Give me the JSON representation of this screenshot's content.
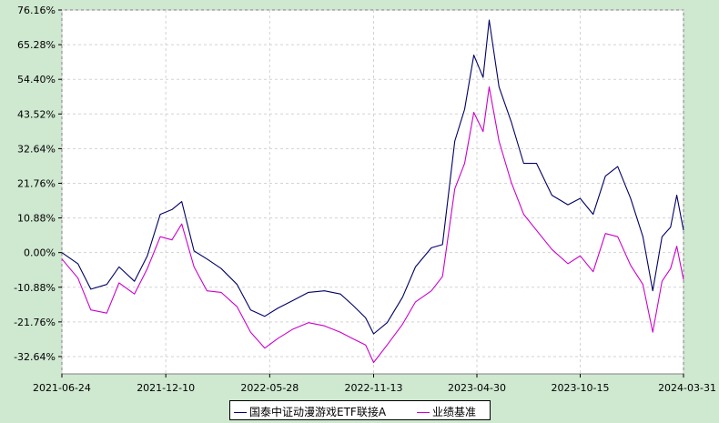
{
  "colors": {
    "series1": "#000066",
    "series2": "#cc00cc",
    "grid": "#d3d3d3",
    "plot_bg": "#ffffff",
    "page_bg": "#cfe8d0"
  },
  "chart_data": {
    "type": "line",
    "ylim": [
      -38.08,
      76.16
    ],
    "yticks": [
      "76.16%",
      "65.28%",
      "54.40%",
      "43.52%",
      "32.64%",
      "21.76%",
      "10.88%",
      "0.00%",
      "-10.88%",
      "-21.76%",
      "-32.64%"
    ],
    "ytick_values": [
      76.16,
      65.28,
      54.4,
      43.52,
      32.64,
      21.76,
      10.88,
      0.0,
      -10.88,
      -21.76,
      -32.64
    ],
    "xticks": [
      "2021-06-24",
      "2021-12-10",
      "2022-05-28",
      "2022-11-13",
      "2023-04-30",
      "2023-10-15",
      "2024-03-31"
    ],
    "x_start": "2021-06-24",
    "x_end": "2024-03-31",
    "grid": true,
    "legend_position": "bottom",
    "series": [
      {
        "name": "国泰中证动漫游戏ETF联接A",
        "color": "#000066",
        "x": [
          "2021-06-24",
          "2021-07-20",
          "2021-08-10",
          "2021-09-05",
          "2021-09-25",
          "2021-10-20",
          "2021-11-10",
          "2021-12-01",
          "2021-12-20",
          "2022-01-05",
          "2022-01-25",
          "2022-02-15",
          "2022-03-10",
          "2022-04-05",
          "2022-04-27",
          "2022-05-20",
          "2022-06-10",
          "2022-07-05",
          "2022-07-30",
          "2022-08-25",
          "2022-09-20",
          "2022-10-10",
          "2022-10-31",
          "2022-11-13",
          "2022-12-05",
          "2022-12-30",
          "2023-01-20",
          "2023-02-15",
          "2023-03-05",
          "2023-03-25",
          "2023-04-10",
          "2023-04-25",
          "2023-05-10",
          "2023-05-20",
          "2023-06-05",
          "2023-06-25",
          "2023-07-15",
          "2023-08-05",
          "2023-08-30",
          "2023-09-25",
          "2023-10-15",
          "2023-11-05",
          "2023-11-25",
          "2023-12-15",
          "2024-01-05",
          "2024-01-25",
          "2024-02-10",
          "2024-02-25",
          "2024-03-10",
          "2024-03-20",
          "2024-03-31"
        ],
        "values": [
          0.0,
          -3.5,
          -11.5,
          -10.0,
          -4.5,
          -9.0,
          -1.0,
          12.0,
          13.5,
          16.0,
          0.5,
          -2.0,
          -5.0,
          -10.0,
          -18.0,
          -20.0,
          -17.5,
          -15.0,
          -12.5,
          -12.0,
          -13.0,
          -16.5,
          -20.5,
          -25.5,
          -22.0,
          -14.0,
          -4.5,
          1.5,
          2.5,
          35.0,
          45.0,
          62.0,
          55.0,
          73.0,
          52.0,
          41.0,
          28.0,
          28.0,
          18.0,
          15.0,
          17.0,
          12.0,
          24.0,
          27.0,
          17.0,
          5.0,
          -12.0,
          5.0,
          8.0,
          18.0,
          7.0
        ]
      },
      {
        "name": "业绩基准",
        "color": "#cc00cc",
        "x": [
          "2021-06-24",
          "2021-07-20",
          "2021-08-10",
          "2021-09-05",
          "2021-09-25",
          "2021-10-20",
          "2021-11-10",
          "2021-12-01",
          "2021-12-20",
          "2022-01-05",
          "2022-01-25",
          "2022-02-15",
          "2022-03-10",
          "2022-04-05",
          "2022-04-27",
          "2022-05-20",
          "2022-06-10",
          "2022-07-05",
          "2022-07-30",
          "2022-08-25",
          "2022-09-20",
          "2022-10-10",
          "2022-10-31",
          "2022-11-13",
          "2022-12-05",
          "2022-12-30",
          "2023-01-20",
          "2023-02-15",
          "2023-03-05",
          "2023-03-25",
          "2023-04-10",
          "2023-04-25",
          "2023-05-10",
          "2023-05-20",
          "2023-06-05",
          "2023-06-25",
          "2023-07-15",
          "2023-08-05",
          "2023-08-30",
          "2023-09-25",
          "2023-10-15",
          "2023-11-05",
          "2023-11-25",
          "2023-12-15",
          "2024-01-05",
          "2024-01-25",
          "2024-02-10",
          "2024-02-25",
          "2024-03-10",
          "2024-03-20",
          "2024-03-31"
        ],
        "values": [
          -2.0,
          -8.0,
          -18.0,
          -19.0,
          -9.5,
          -13.0,
          -5.0,
          5.0,
          4.0,
          9.0,
          -4.5,
          -12.0,
          -12.5,
          -17.0,
          -25.0,
          -30.0,
          -27.0,
          -24.0,
          -22.0,
          -23.0,
          -25.0,
          -27.0,
          -29.0,
          -34.5,
          -29.0,
          -22.5,
          -15.5,
          -12.0,
          -7.5,
          20.0,
          28.0,
          44.0,
          38.0,
          52.0,
          35.0,
          22.0,
          12.0,
          7.0,
          1.0,
          -3.5,
          -1.0,
          -6.0,
          6.0,
          5.0,
          -4.0,
          -10.0,
          -25.0,
          -9.0,
          -5.0,
          2.0,
          -8.5
        ]
      }
    ]
  }
}
